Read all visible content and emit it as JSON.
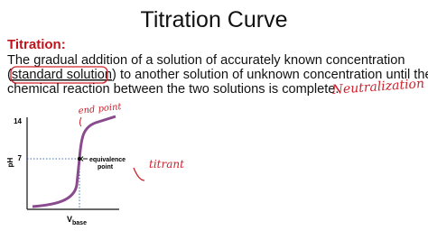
{
  "title": "Titration Curve",
  "definition": {
    "term": "Titration:",
    "line1": "The gradual addition of a solution of accurately known concentration",
    "line2_open": "(",
    "highlight": "standard solution",
    "line2_rest": ") to another solution of unknown concentration until the",
    "line3": "chemical reaction between the two solutions is complete."
  },
  "graph": {
    "y_label": "pH",
    "y_tick_top": "14",
    "y_tick_mid": "7",
    "x_label": "V",
    "x_label_sub": "base",
    "point_label_1": "equivalence",
    "point_label_2": "point"
  },
  "handwriting": {
    "neutralization": "Neutralization",
    "end_point": "end point",
    "titrant": "titrant"
  }
}
